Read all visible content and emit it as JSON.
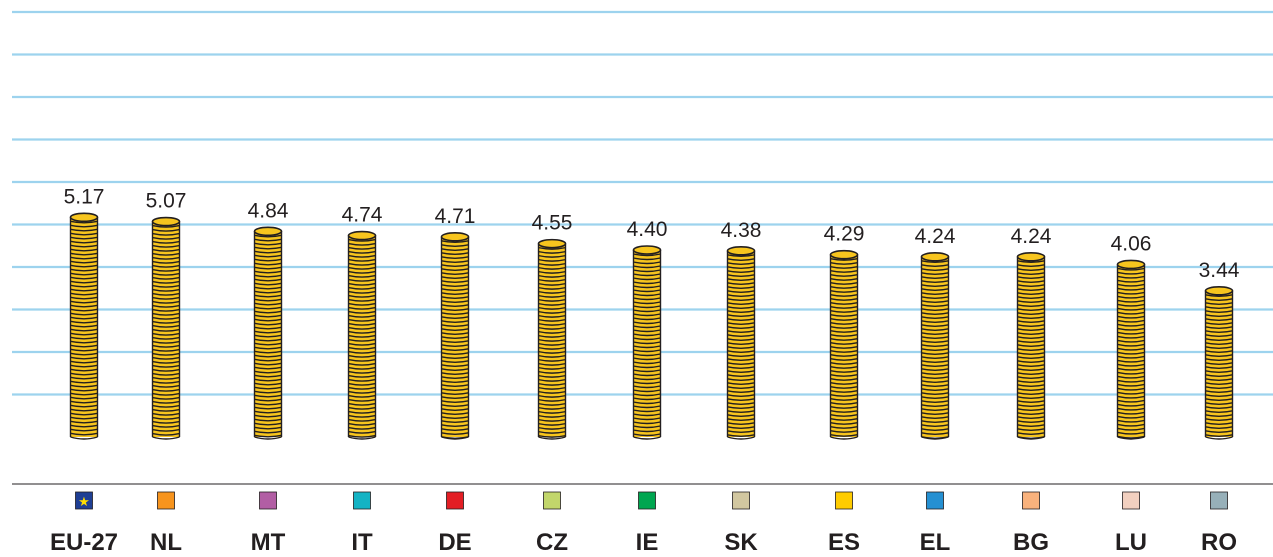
{
  "chart_data": {
    "type": "bar",
    "categories": [
      "EU-27",
      "NL",
      "MT",
      "IT",
      "DE",
      "CZ",
      "IE",
      "SK",
      "ES",
      "EL",
      "BG",
      "LU",
      "RO"
    ],
    "values": [
      5.17,
      5.07,
      4.84,
      4.74,
      4.71,
      4.55,
      4.4,
      4.38,
      4.29,
      4.24,
      4.24,
      4.06,
      3.44
    ],
    "value_labels": [
      "5.17",
      "5.07",
      "4.84",
      "4.74",
      "4.71",
      "4.55",
      "4.40",
      "4.38",
      "4.29",
      "4.24",
      "4.24",
      "4.06",
      "3.44"
    ],
    "ylim": [
      0,
      10
    ],
    "grid": true,
    "bar_style": "stacked coins",
    "colors": {
      "gridline": "#9dd3ee",
      "coin_fill": "#f7c51e",
      "coin_stroke": "#231f20",
      "axis": "#231f20"
    },
    "flag_colors": [
      "#1f3f94",
      "#f7941d",
      "#b25ea4",
      "#14b3c4",
      "#e31e24",
      "#c2d66b",
      "#00a650",
      "#d2c7a0",
      "#ffcc00",
      "#2590d2",
      "#f9b27d",
      "#f2d0c0",
      "#97b0b9"
    ]
  }
}
